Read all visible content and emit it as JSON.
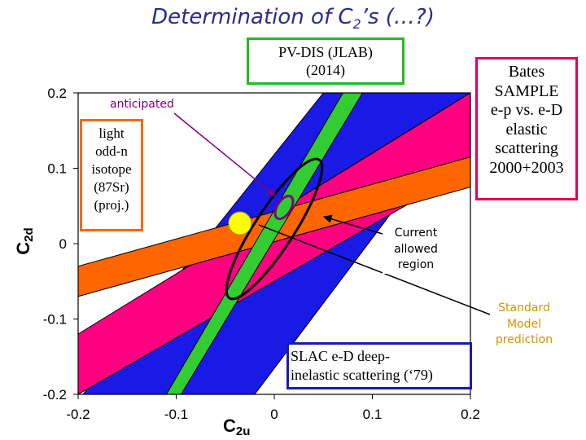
{
  "title": {
    "prefix": "Determination of C",
    "sub": "2",
    "suffix": "’s (…?)"
  },
  "labels": {
    "pvdis": [
      "PV-DIS (JLAB)",
      "(2014)"
    ],
    "bates": [
      "Bates",
      "SAMPLE",
      "e-p vs. e-D",
      "elastic",
      "scattering",
      "2000+2003"
    ],
    "anticipated": "anticipated",
    "light_odd_n": [
      "light",
      "odd-n",
      "isotope",
      "(87Sr)",
      "(proj.)"
    ],
    "current_allowed": [
      "Current",
      "allowed",
      "region"
    ],
    "standard_model": [
      "Standard",
      "Model",
      "prediction"
    ],
    "slac": [
      "SLAC e-D deep-",
      "inelastic scattering (‘79)"
    ]
  },
  "colors": {
    "slac_band": "#1a1ae6",
    "bates_band": "#ff0080",
    "isotope_band": "#ff6600",
    "pvdis_band": "#33cc33",
    "allowed_ellipse": "#000000",
    "anticipated": "#800080",
    "standard_model": "#ffff00",
    "pvdis_box": "#22bb22",
    "bates_box": "#e0005a",
    "isotope_box": "#ff6600",
    "slac_box": "#1a1ab3",
    "sm_text": "#cc9900"
  },
  "chart_data": {
    "type": "scatter",
    "xlabel": "C2u",
    "ylabel": "C2d",
    "xlim": [
      -0.2,
      0.2
    ],
    "ylim": [
      -0.2,
      0.2
    ],
    "xticks": [
      "-0.2",
      "-0.1",
      "0",
      "0.1",
      "0.2"
    ],
    "yticks": [
      "0.2",
      "0.1",
      "0",
      "-0.1",
      "-0.2"
    ],
    "bands": [
      {
        "name": "SLAC e-D deep-inelastic scattering (‘79)",
        "polygon": [
          [
            -0.195,
            -0.2
          ],
          [
            0.05,
            0.2
          ],
          [
            0.2,
            0.2
          ],
          [
            0.2,
            0.18
          ],
          [
            -0.02,
            -0.2
          ]
        ]
      },
      {
        "name": "Bates SAMPLE e-p vs. e-D elastic scattering 2000+2003",
        "polygon": [
          [
            -0.2,
            -0.12
          ],
          [
            0.2,
            0.2
          ],
          [
            0.2,
            0.1
          ],
          [
            -0.2,
            -0.2
          ]
        ]
      },
      {
        "name": "light odd-n isotope (87Sr) (proj.)",
        "polygon": [
          [
            -0.2,
            -0.03
          ],
          [
            0.2,
            0.115
          ],
          [
            0.2,
            0.075
          ],
          [
            -0.2,
            -0.07
          ]
        ]
      },
      {
        "name": "PV-DIS (JLAB) (2014)",
        "polygon": [
          [
            -0.11,
            -0.2
          ],
          [
            0.07,
            0.2
          ],
          [
            0.09,
            0.2
          ],
          [
            -0.095,
            -0.2
          ]
        ]
      }
    ],
    "allowed_region_ellipse": {
      "cx": 0.0,
      "cy": 0.0195,
      "rx": 0.084,
      "ry": 0.02,
      "angle_deg": -57
    },
    "anticipated_ellipse": {
      "cx": 0.01,
      "cy": 0.048,
      "rx": 0.013,
      "ry": 0.007,
      "angle_deg": -58
    },
    "standard_model_point": {
      "x": -0.035,
      "y": 0.027
    }
  }
}
